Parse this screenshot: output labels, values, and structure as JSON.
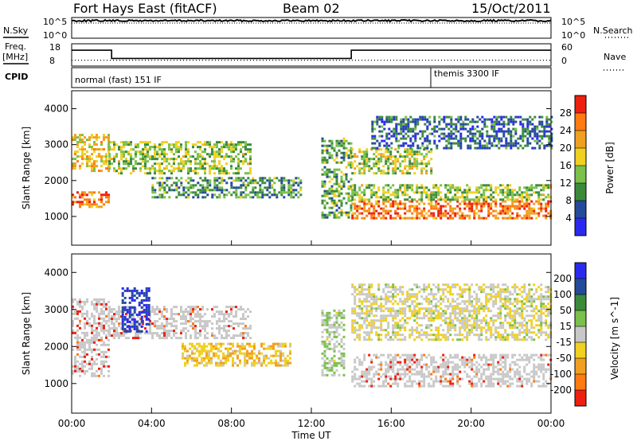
{
  "header": {
    "station": "Fort Hays East (fitACF)",
    "beam": "Beam 02",
    "date": "15/Oct/2011"
  },
  "strips": {
    "nsky_label": "N.Sky",
    "nsearch_label": "N.Search",
    "freq_label_1": "Freq.",
    "freq_label_2": "[MHz]",
    "nave_label": "Nave",
    "cpid_label": "CPID",
    "left_ticks_top": [
      "10^5",
      "10^0"
    ],
    "right_ticks_top": [
      "10^5",
      "10^0"
    ],
    "freq_ticks": [
      "18",
      "8"
    ],
    "nave_ticks": [
      "60",
      "0"
    ],
    "cpid_modes": [
      "normal (fast) 151 IF",
      "themis 3300 IF"
    ]
  },
  "colors": {
    "power_scale": [
      "#2a2aee",
      "#244a9a",
      "#3a8a3a",
      "#7ac04a",
      "#f0d020",
      "#f0a020",
      "#ff7a10",
      "#ee2010"
    ],
    "velocity_scale": [
      "#2a2aee",
      "#244a9a",
      "#3a8a3a",
      "#7ac04a",
      "#c8c8c8",
      "#f0d020",
      "#f0a020",
      "#ff7a10",
      "#ee2010"
    ],
    "ground_scatter": "#c8c8c8"
  },
  "chart_data": [
    {
      "type": "line",
      "title": "",
      "series": [
        {
          "name": "N.Sky",
          "x": [
            "00:00",
            "24:00"
          ],
          "values": [
            100000,
            100000
          ]
        },
        {
          "name": "N.Search",
          "x": [
            "00:00",
            "24:00"
          ],
          "values": [
            100000,
            100000
          ]
        }
      ],
      "ylabel": "N.Sky",
      "scale": "log",
      "ylim": [
        1,
        100000
      ]
    },
    {
      "type": "line",
      "title": "",
      "series": [
        {
          "name": "Freq.",
          "x": [
            "00:00",
            "02:00",
            "02:00",
            "14:00",
            "14:00",
            "24:00"
          ],
          "values": [
            15.7,
            15.7,
            11.0,
            11.0,
            15.7,
            15.7
          ]
        },
        {
          "name": "Nave",
          "x": [
            "00:00",
            "24:00"
          ],
          "values": [
            12,
            12
          ]
        }
      ],
      "ylabel": "Freq. [MHz]",
      "ylim": [
        8,
        18
      ],
      "y2lim": [
        0,
        60
      ]
    },
    {
      "type": "heatmap",
      "title": "",
      "xlabel": "",
      "ylabel": "Slant Range [km]",
      "colorbar_label": "Power [dB]",
      "colorbar_ticks": [
        "28",
        "24",
        "20",
        "16",
        "12",
        "8",
        "4"
      ],
      "yticks": [
        "4000",
        "3000",
        "2000",
        "1000"
      ],
      "ylim": [
        200,
        4500
      ],
      "xlim": [
        "00:00",
        "24:00"
      ],
      "bands": [
        {
          "start": "00:00",
          "end": "01:50",
          "range_from": 1300,
          "range_to": 1700,
          "power": 26
        },
        {
          "start": "00:00",
          "end": "01:50",
          "range_from": 2300,
          "range_to": 3300,
          "power": 20
        },
        {
          "start": "01:50",
          "end": "09:00",
          "range_from": 2200,
          "range_to": 3100,
          "power": 14
        },
        {
          "start": "04:00",
          "end": "11:30",
          "range_from": 1550,
          "range_to": 2100,
          "power": 10
        },
        {
          "start": "12:30",
          "end": "14:00",
          "range_from": 1000,
          "range_to": 3200,
          "power": 12
        },
        {
          "start": "14:00",
          "end": "24:00",
          "range_from": 950,
          "range_to": 1450,
          "power": 27
        },
        {
          "start": "14:00",
          "end": "24:00",
          "range_from": 1450,
          "range_to": 1900,
          "power": 14
        },
        {
          "start": "14:00",
          "end": "18:00",
          "range_from": 2200,
          "range_to": 2900,
          "power": 16
        },
        {
          "start": "15:00",
          "end": "24:00",
          "range_from": 2900,
          "range_to": 3800,
          "power": 6
        }
      ]
    },
    {
      "type": "heatmap",
      "title": "",
      "xlabel": "Time UT",
      "ylabel": "Slant Range [km]",
      "colorbar_label": "Velocity [m s^-1]",
      "colorbar_ticks": [
        "200",
        "100",
        "50",
        "15",
        "-15",
        "-50",
        "-100",
        "-200"
      ],
      "xticks": [
        "00:00",
        "04:00",
        "08:00",
        "12:00",
        "16:00",
        "20:00",
        "00:00"
      ],
      "yticks": [
        "4000",
        "3000",
        "2000",
        "1000"
      ],
      "ylim": [
        200,
        4500
      ],
      "xlim": [
        "00:00",
        "24:00"
      ],
      "bands": [
        {
          "start": "00:00",
          "end": "01:50",
          "range_from": 1200,
          "range_to": 3300,
          "velocity": 0,
          "ground_scatter": true
        },
        {
          "start": "01:50",
          "end": "09:00",
          "range_from": 2200,
          "range_to": 3100,
          "velocity": 0,
          "ground_scatter": true
        },
        {
          "start": "02:30",
          "end": "03:50",
          "range_from": 2400,
          "range_to": 3600,
          "velocity": 220
        },
        {
          "start": "05:30",
          "end": "11:00",
          "range_from": 1500,
          "range_to": 2100,
          "velocity": -70
        },
        {
          "start": "12:30",
          "end": "13:40",
          "range_from": 1200,
          "range_to": 3000,
          "velocity": 30
        },
        {
          "start": "14:00",
          "end": "24:00",
          "range_from": 950,
          "range_to": 1800,
          "velocity": 0,
          "ground_scatter": true
        },
        {
          "start": "14:00",
          "end": "24:00",
          "range_from": 2200,
          "range_to": 3700,
          "velocity": -20
        }
      ]
    }
  ]
}
